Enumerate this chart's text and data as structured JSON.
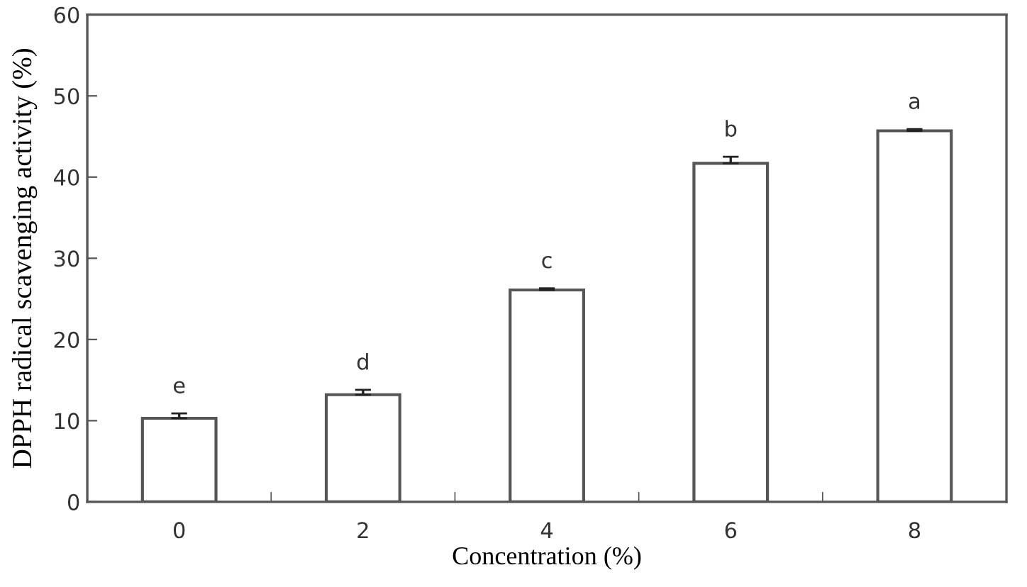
{
  "chart_data": {
    "type": "bar",
    "xlabel": "Concentration (%)",
    "ylabel": "DPPH radical scavenging activity (%)",
    "categories": [
      "0",
      "2",
      "4",
      "6",
      "8"
    ],
    "values": [
      10.3,
      13.2,
      26.1,
      41.7,
      45.7
    ],
    "errors": [
      0.6,
      0.6,
      0.2,
      0.8,
      0.2
    ],
    "color": "#ffffff",
    "ylim": [
      0,
      60
    ],
    "yticks": [
      0,
      10,
      20,
      30,
      40,
      50,
      60
    ],
    "grid": false,
    "legend": false,
    "annotations": [
      {
        "text": "e",
        "x": "0",
        "y": 10.9
      },
      {
        "text": "d",
        "x": "2",
        "y": 13.8
      },
      {
        "text": "c",
        "x": "4",
        "y": 26.3
      },
      {
        "text": "b",
        "x": "6",
        "y": 42.5
      },
      {
        "text": "a",
        "x": "8",
        "y": 45.9
      }
    ]
  }
}
